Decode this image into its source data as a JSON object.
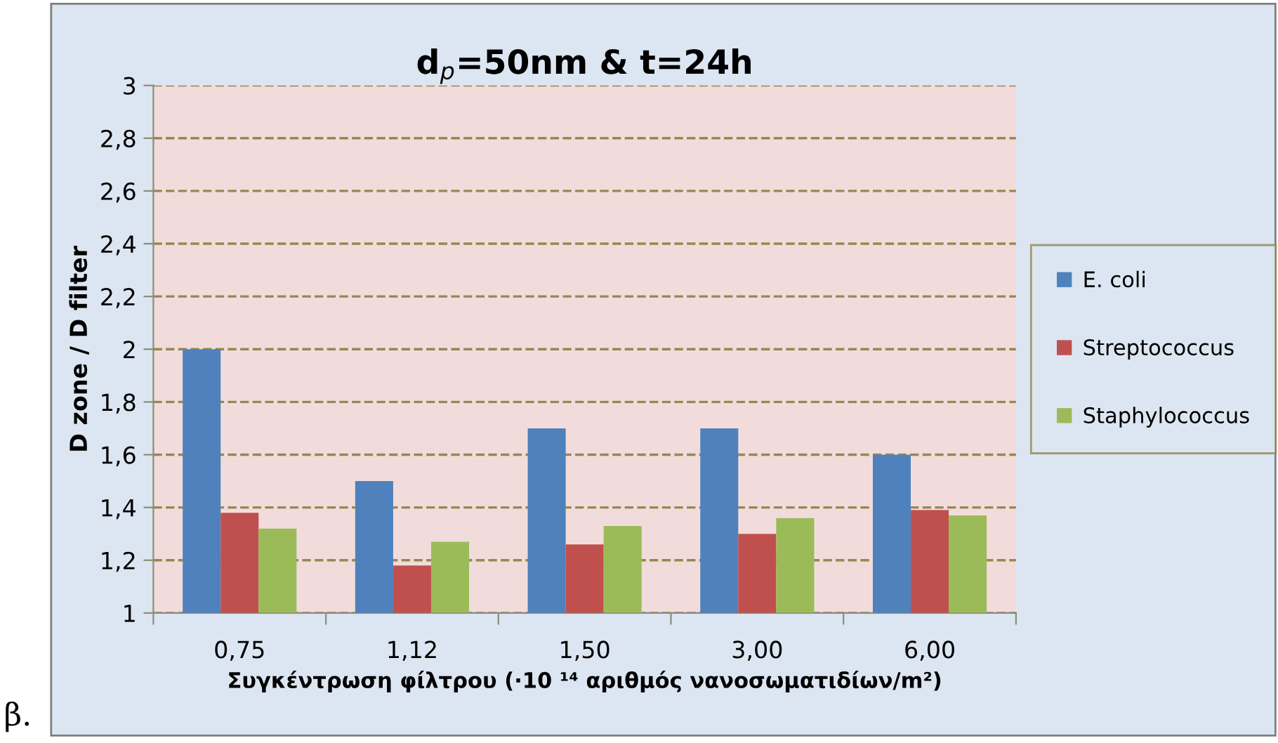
{
  "chart_data": {
    "type": "bar",
    "title": "d$_{p}$=50nm & t=24h",
    "xlabel": "Συγκέντρωση φίλτρου (·10 ¹⁴ αριθμός νανοσωματιδίων/m²)",
    "ylabel": "D zone / D filter",
    "categories": [
      "0,75",
      "1,12",
      "1,50",
      "3,00",
      "6,00"
    ],
    "series": [
      {
        "name": "E. coli",
        "color": "#4f81bd",
        "values": [
          2.0,
          1.5,
          1.7,
          1.7,
          1.6
        ]
      },
      {
        "name": "Streptococcus",
        "color": "#c0504d",
        "values": [
          1.38,
          1.18,
          1.26,
          1.3,
          1.39
        ]
      },
      {
        "name": "Staphylococcus",
        "color": "#9bbb59",
        "values": [
          1.32,
          1.27,
          1.33,
          1.36,
          1.37
        ]
      }
    ],
    "ylim": [
      1,
      3
    ],
    "yticks": [
      1,
      {
        "value": 1.2,
        "label": "1,2"
      },
      {
        "value": 1.4,
        "label": "1,4"
      },
      {
        "value": 1.6,
        "label": "1,6"
      },
      {
        "value": 1.8,
        "label": "1,8"
      },
      2,
      {
        "value": 2.2,
        "label": "2,2"
      },
      {
        "value": 2.4,
        "label": "2,4"
      },
      {
        "value": 2.6,
        "label": "2,6"
      },
      {
        "value": 2.8,
        "label": "2,8"
      },
      3
    ],
    "grid": "y",
    "legend": "right",
    "annotations": [
      "β."
    ]
  }
}
